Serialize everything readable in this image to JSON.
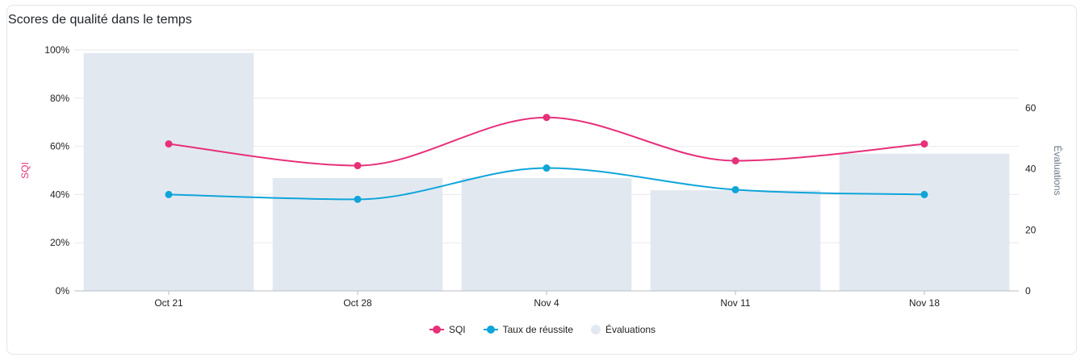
{
  "card_title": "Scores de qualité dans le temps",
  "chart_data": {
    "type": "bar",
    "title": "Scores de qualité dans le temps",
    "categories": [
      "Oct 21",
      "Oct 28",
      "Nov 4",
      "Nov 11",
      "Nov 18"
    ],
    "y_left": {
      "label": "SQI",
      "ticks": [
        "0%",
        "20%",
        "40%",
        "60%",
        "80%",
        "100%"
      ],
      "ylim": [
        0,
        100
      ],
      "color": "#e6307a"
    },
    "y_right": {
      "label": "Évaluations",
      "ticks": [
        "0",
        "20",
        "40",
        "60"
      ],
      "ylim": [
        0,
        79
      ],
      "color": "#6b7a8a"
    },
    "series": [
      {
        "name": "Évaluations",
        "kind": "bar",
        "axis": "right",
        "color": "#e2e8f0",
        "values": [
          78,
          37,
          37,
          33,
          45
        ]
      },
      {
        "name": "SQI",
        "kind": "line",
        "axis": "left",
        "color": "#e6307a",
        "values": [
          61,
          52,
          72,
          54,
          61
        ]
      },
      {
        "name": "Taux de réussite",
        "kind": "line",
        "axis": "left",
        "color": "#0ea5d9",
        "values": [
          40,
          38,
          51,
          42,
          40
        ]
      }
    ],
    "grid": true,
    "legend_position": "bottom"
  },
  "legend": [
    {
      "label": "SQI",
      "color": "#e6307a",
      "shape": "line"
    },
    {
      "label": "Taux de réussite",
      "color": "#0ea5d9",
      "shape": "line"
    },
    {
      "label": "Évaluations",
      "color": "#e2e8f0",
      "shape": "dot"
    }
  ]
}
